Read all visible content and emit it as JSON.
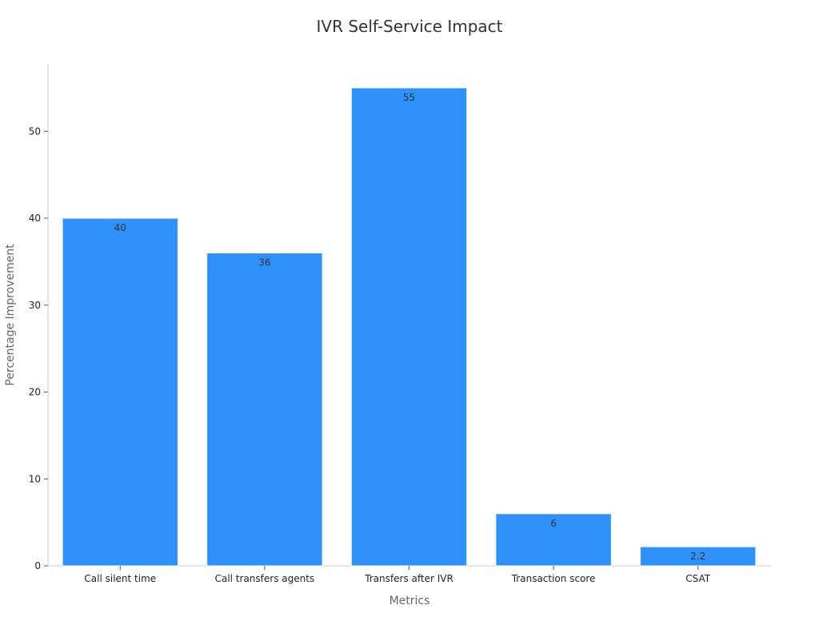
{
  "chart_data": {
    "type": "bar",
    "title": "IVR Self-Service Impact",
    "xlabel": "Metrics",
    "ylabel": "Percentage Improvement",
    "categories": [
      "Call silent time",
      "Call transfers agents",
      "Transfers after IVR",
      "Transaction score",
      "CSAT"
    ],
    "values": [
      40,
      36,
      55,
      6,
      2.2
    ],
    "value_labels": [
      "40",
      "36",
      "55",
      "6",
      "2.2"
    ],
    "yticks": [
      0,
      10,
      20,
      30,
      40,
      50
    ],
    "ytick_labels": [
      "0",
      "10",
      "20",
      "30",
      "40",
      "50"
    ],
    "ylim": [
      0,
      57.75
    ],
    "grid": false,
    "colors": {
      "bar": "#2e92fa",
      "bar_edge": "#ffffff",
      "axis": "#cccccc",
      "title": "#333333",
      "tick_text": "#222222",
      "axis_label": "#666666",
      "value_label": "#333333"
    }
  }
}
